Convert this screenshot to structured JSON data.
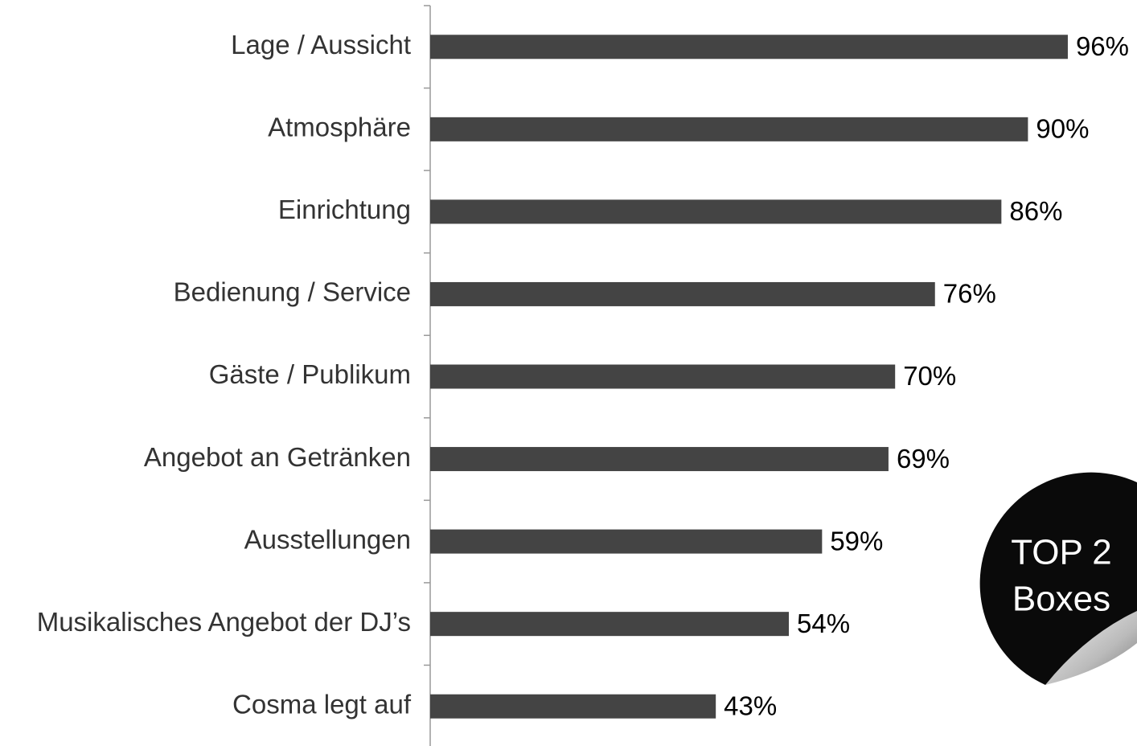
{
  "chart_data": {
    "type": "bar",
    "orientation": "horizontal",
    "categories": [
      "Lage / Aussicht",
      "Atmosphäre",
      "Einrichtung",
      "Bedienung / Service",
      "Gäste / Publikum",
      "Angebot an Getränken",
      "Ausstellungen",
      "Musikalisches Angebot der DJ’s",
      "Cosma legt auf"
    ],
    "values": [
      96,
      90,
      86,
      76,
      70,
      69,
      59,
      54,
      43
    ],
    "value_labels": [
      "96%",
      "90%",
      "86%",
      "76%",
      "70%",
      "69%",
      "59%",
      "54%",
      "43%"
    ],
    "color": "#444444",
    "xlim": [
      0,
      100
    ],
    "badge": [
      "TOP 2",
      "Boxes"
    ]
  }
}
